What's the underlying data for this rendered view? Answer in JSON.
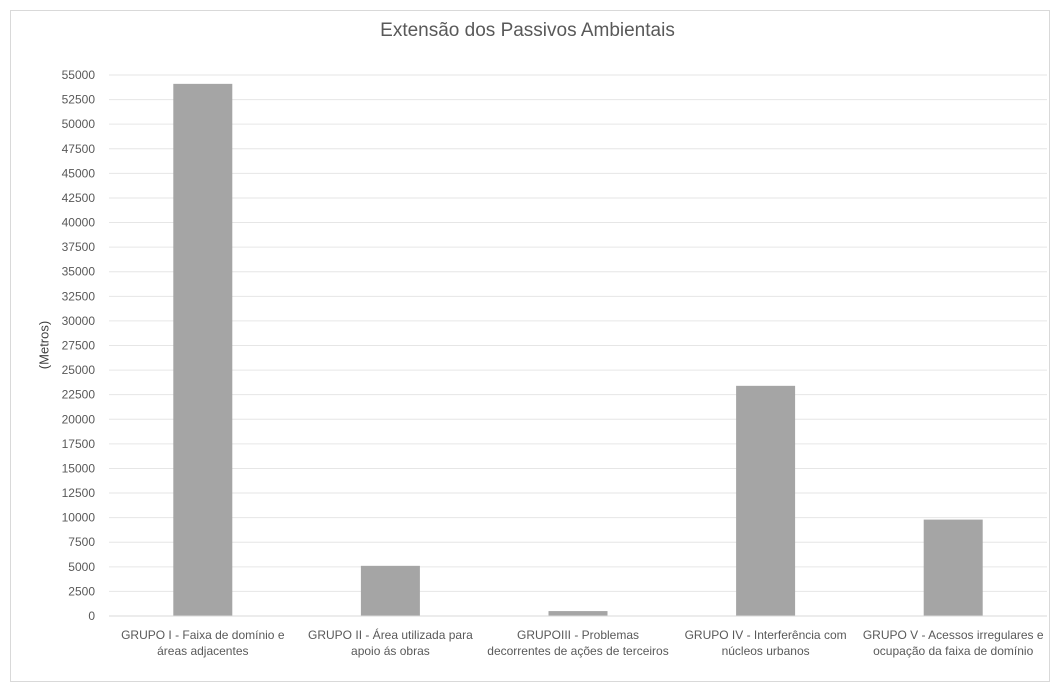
{
  "chart_data": {
    "type": "bar",
    "title": "Extensão dos Passivos Ambientais",
    "xlabel": "",
    "ylabel": "(Metros)",
    "ylim": [
      0,
      55000
    ],
    "ytick_step": 2500,
    "yticks": [
      "0",
      "2500",
      "5000",
      "7500",
      "10000",
      "12500",
      "15000",
      "17500",
      "20000",
      "22500",
      "25000",
      "27500",
      "30000",
      "32500",
      "35000",
      "37500",
      "40000",
      "42500",
      "45000",
      "47500",
      "50000",
      "52500",
      "55000"
    ],
    "categories": [
      "GRUPO I - Faixa de domínio e áreas adjacentes",
      "GRUPO II - Área utilizada para apoio ás obras",
      "GRUPOIII - Problemas decorrentes de ações de terceiros",
      "GRUPO IV - Interferência com núcleos urbanos",
      "GRUPO V - Acessos irregulares e ocupação da faixa de domínio"
    ],
    "values": [
      54100,
      5100,
      500,
      23400,
      9800
    ],
    "bar_color": "#a5a5a5",
    "grid": true,
    "legend": "none"
  }
}
